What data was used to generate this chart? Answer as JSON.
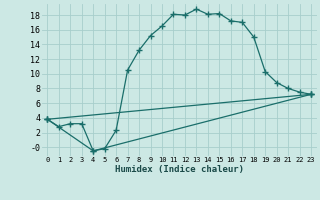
{
  "xlabel": "Humidex (Indice chaleur)",
  "bg_color": "#cce8e4",
  "grid_color": "#a8cecc",
  "line_color": "#1a6e6a",
  "xlim": [
    -0.5,
    23.5
  ],
  "ylim": [
    -1.2,
    19.5
  ],
  "xticks": [
    0,
    1,
    2,
    3,
    4,
    5,
    6,
    7,
    8,
    9,
    10,
    11,
    12,
    13,
    14,
    15,
    16,
    17,
    18,
    19,
    20,
    21,
    22,
    23
  ],
  "yticks": [
    0,
    2,
    4,
    6,
    8,
    10,
    12,
    14,
    16,
    18
  ],
  "ytick_labels": [
    "-0",
    "2",
    "4",
    "6",
    "8",
    "10",
    "12",
    "14",
    "16",
    "18"
  ],
  "line1_x": [
    0,
    1,
    2,
    3,
    4,
    5,
    6,
    7,
    8,
    9,
    10,
    11,
    12,
    13,
    14,
    15,
    16,
    17,
    18,
    19,
    20,
    21,
    22,
    23
  ],
  "line1_y": [
    3.8,
    2.8,
    3.2,
    3.2,
    -0.5,
    -0.2,
    2.3,
    10.5,
    13.2,
    15.2,
    16.5,
    18.1,
    18.0,
    18.8,
    18.1,
    18.2,
    17.2,
    17.0,
    15.0,
    10.3,
    8.8,
    8.0,
    7.5,
    7.2
  ],
  "line2_x": [
    0,
    23
  ],
  "line2_y": [
    3.8,
    7.2
  ],
  "line3_x": [
    0,
    4,
    23
  ],
  "line3_y": [
    3.8,
    -0.5,
    7.2
  ]
}
